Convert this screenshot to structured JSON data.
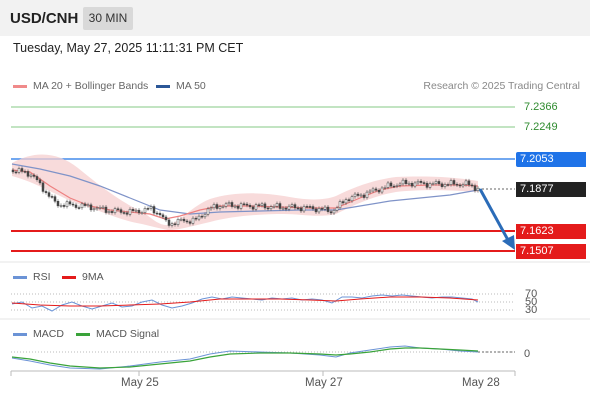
{
  "header": {
    "symbol": "USD/CNH",
    "timeframe": "30 MIN"
  },
  "datetime": "Tuesday, May 27, 2025 11:11:31 PM CET",
  "legend": {
    "ma20": {
      "label": "MA 20 + Bollinger Bands",
      "color": "#f08a8a"
    },
    "ma50": {
      "label": "MA 50",
      "color": "#2b5797"
    }
  },
  "credit": "Research © 2025 Trading Central",
  "levels": {
    "resistance_2": "7.2366",
    "resistance_1": "7.2249",
    "pivot": "7.2053",
    "last": "7.1877",
    "support_1": "7.1623",
    "support_2": "7.1507"
  },
  "rsi": {
    "label": "RSI",
    "ma_label": "9MA",
    "levels": [
      "70",
      "50",
      "30"
    ]
  },
  "macd": {
    "label": "MACD",
    "signal_label": "MACD Signal",
    "zero": "0"
  },
  "xaxis": [
    "May 25",
    "May 27",
    "May 28"
  ],
  "colors": {
    "resistance": "#3aa33a",
    "pivot": "#1f73e8",
    "support": "#e41b1b",
    "arrow": "#2b6cb8"
  }
}
